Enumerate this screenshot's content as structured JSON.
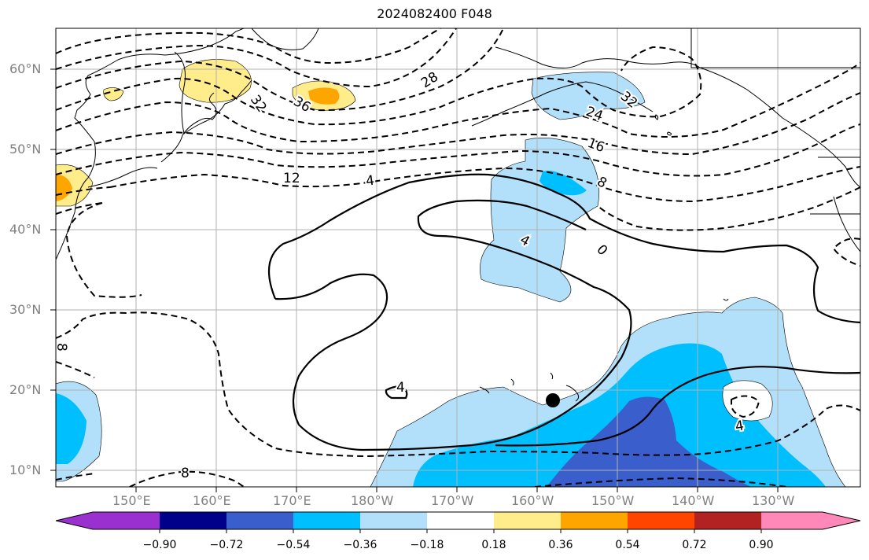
{
  "title": "2024082400 F048",
  "map": {
    "projection": "PlateCarree, central longitude 180",
    "lon_range": [
      140,
      -120
    ],
    "lat_range": [
      8,
      65
    ],
    "lat_labels": [
      "60°N",
      "50°N",
      "40°N",
      "30°N",
      "20°N",
      "10°N"
    ],
    "lon_labels": [
      "150°E",
      "160°E",
      "170°E",
      "180°W",
      "170°W",
      "160°W",
      "150°W",
      "140°W",
      "130°W"
    ],
    "contour_labels": [
      "32",
      "36",
      "28",
      "32",
      "24",
      "16",
      "8",
      "12",
      "4",
      "0",
      "4",
      "4",
      "8",
      "8",
      "4"
    ],
    "marker": "black-dot",
    "colors": {
      "coast": "#000000",
      "grid": "#b0b0b0",
      "contour": "#000000"
    }
  },
  "colorbar": {
    "ticks": [
      "−0.90",
      "−0.72",
      "−0.54",
      "−0.36",
      "−0.18",
      "0.18",
      "0.36",
      "0.54",
      "0.72",
      "0.90"
    ],
    "colors": [
      "#9b30d0",
      "#00008b",
      "#3a5fcd",
      "#00bfff",
      "#b2e0fa",
      "#ffffff",
      "#ffec8b",
      "#ffa500",
      "#ff4500",
      "#b22222",
      "#ff88b8"
    ]
  }
}
